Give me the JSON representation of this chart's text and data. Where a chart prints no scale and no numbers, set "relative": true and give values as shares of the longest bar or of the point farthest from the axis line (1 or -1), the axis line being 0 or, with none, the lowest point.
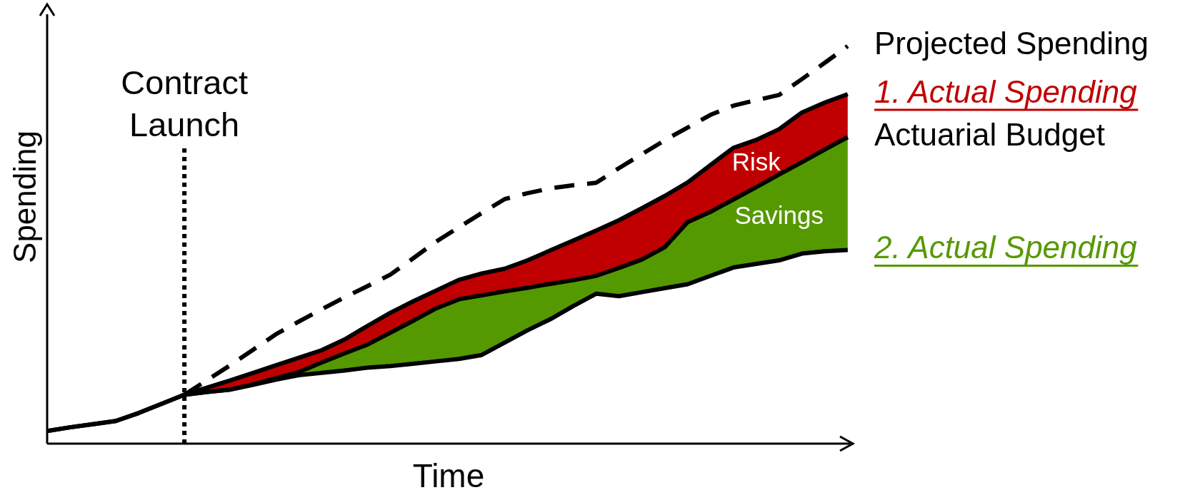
{
  "chart_data": {
    "type": "line",
    "relative": true,
    "xlabel": "Time",
    "ylabel": "Spending",
    "legend": false,
    "categories": [
      null,
      null,
      null,
      null,
      null,
      null,
      null,
      null,
      null,
      null,
      null,
      null,
      null,
      null,
      null,
      null,
      null,
      null,
      null,
      null,
      null,
      null,
      null,
      null,
      null,
      null,
      null,
      null,
      null,
      null,
      null,
      null,
      null,
      null,
      null,
      null
    ],
    "series": [
      {
        "name": "Projected Spending",
        "line_style": "dashed",
        "color": "#000000",
        "values": [
          null,
          null,
          null,
          null,
          null,
          null,
          0.123,
          0.16,
          0.197,
          0.236,
          0.275,
          0.307,
          0.338,
          0.368,
          0.396,
          0.425,
          0.466,
          0.508,
          0.544,
          0.58,
          0.615,
          0.63,
          0.642,
          0.65,
          0.656,
          0.693,
          0.728,
          0.763,
          0.795,
          0.827,
          0.85,
          0.864,
          0.877,
          0.917,
          0.958,
          1.0
        ]
      },
      {
        "name": "1. Actual Spending",
        "type": "area",
        "color": "#c00000",
        "values": [
          null,
          null,
          null,
          null,
          null,
          null,
          0.123,
          0.141,
          0.159,
          0.178,
          0.197,
          0.216,
          0.235,
          0.262,
          0.296,
          0.329,
          0.358,
          0.385,
          0.412,
          0.428,
          0.44,
          0.461,
          0.486,
          0.511,
          0.536,
          0.562,
          0.592,
          0.623,
          0.657,
          0.701,
          0.744,
          0.764,
          0.791,
          0.833,
          0.858,
          0.879
        ]
      },
      {
        "name": "Actuarial Budget",
        "type": "area",
        "color": "#559900",
        "values": [
          0.032,
          0.041,
          0.049,
          0.057,
          0.077,
          0.1,
          0.123,
          0.13,
          0.136,
          0.149,
          0.165,
          0.18,
          0.204,
          0.227,
          0.249,
          0.279,
          0.309,
          0.34,
          0.363,
          0.373,
          0.383,
          0.392,
          0.402,
          0.411,
          0.422,
          0.442,
          0.463,
          0.494,
          0.557,
          0.583,
          0.614,
          0.645,
          0.677,
          0.708,
          0.74,
          0.771
        ]
      },
      {
        "name": "2. Actual Spending",
        "type": "line",
        "line_style": "solid",
        "color": "#000000",
        "values": [
          0.032,
          0.041,
          0.049,
          0.057,
          0.077,
          0.1,
          0.123,
          0.13,
          0.136,
          0.148,
          0.161,
          0.172,
          0.178,
          0.184,
          0.191,
          0.195,
          0.201,
          0.207,
          0.213,
          0.223,
          0.254,
          0.285,
          0.313,
          0.346,
          0.377,
          0.371,
          0.381,
          0.391,
          0.401,
          0.422,
          0.443,
          0.452,
          0.461,
          0.478,
          0.484,
          0.487
        ]
      }
    ],
    "annotations": [
      "Contract\nLaunch",
      "Risk",
      "Savings"
    ]
  }
}
